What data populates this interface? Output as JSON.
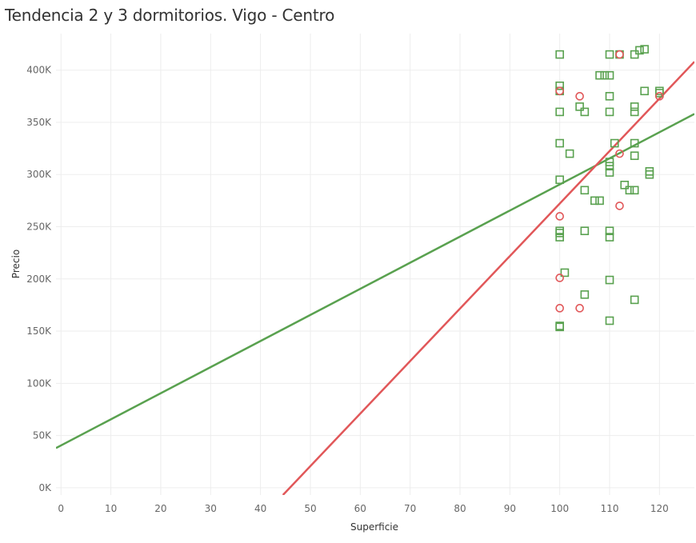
{
  "chart_data": {
    "type": "scatter",
    "title": "Tendencia 2 y 3 dormitorios. Vigo - Centro",
    "xlabel": "Superficie",
    "ylabel": "Precio",
    "xlim": [
      -1,
      127
    ],
    "ylim": [
      -7000,
      435000
    ],
    "x_ticks": [
      {
        "value": 0,
        "label": "0"
      },
      {
        "value": 10,
        "label": "10"
      },
      {
        "value": 20,
        "label": "20"
      },
      {
        "value": 30,
        "label": "30"
      },
      {
        "value": 40,
        "label": "40"
      },
      {
        "value": 50,
        "label": "50"
      },
      {
        "value": 60,
        "label": "60"
      },
      {
        "value": 70,
        "label": "70"
      },
      {
        "value": 80,
        "label": "80"
      },
      {
        "value": 90,
        "label": "90"
      },
      {
        "value": 100,
        "label": "100"
      },
      {
        "value": 110,
        "label": "110"
      },
      {
        "value": 120,
        "label": "120"
      }
    ],
    "y_ticks": [
      {
        "value": 0,
        "label": "0K"
      },
      {
        "value": 50000,
        "label": "50K"
      },
      {
        "value": 100000,
        "label": "100K"
      },
      {
        "value": 150000,
        "label": "150K"
      },
      {
        "value": 200000,
        "label": "200K"
      },
      {
        "value": 250000,
        "label": "250K"
      },
      {
        "value": 300000,
        "label": "300K"
      },
      {
        "value": 350000,
        "label": "350K"
      },
      {
        "value": 400000,
        "label": "400K"
      }
    ],
    "grid": true,
    "series": [
      {
        "marker": "square",
        "color": "#59a14f",
        "points": [
          [
            100,
            415000
          ],
          [
            100,
            385000
          ],
          [
            100,
            380000
          ],
          [
            100,
            360000
          ],
          [
            100,
            330000
          ],
          [
            100,
            295000
          ],
          [
            100,
            246000
          ],
          [
            100,
            244000
          ],
          [
            100,
            240000
          ],
          [
            100,
            155000
          ],
          [
            100,
            154000
          ],
          [
            101,
            206000
          ],
          [
            102,
            320000
          ],
          [
            104,
            365000
          ],
          [
            105,
            360000
          ],
          [
            105,
            285000
          ],
          [
            105,
            246000
          ],
          [
            105,
            185000
          ],
          [
            107,
            275000
          ],
          [
            108,
            275000
          ],
          [
            108,
            395000
          ],
          [
            109,
            395000
          ],
          [
            110,
            395000
          ],
          [
            110,
            415000
          ],
          [
            110,
            375000
          ],
          [
            110,
            360000
          ],
          [
            110,
            312000
          ],
          [
            110,
            308000
          ],
          [
            110,
            302000
          ],
          [
            110,
            246000
          ],
          [
            110,
            240000
          ],
          [
            110,
            199000
          ],
          [
            110,
            160000
          ],
          [
            111,
            330000
          ],
          [
            112,
            415000
          ],
          [
            113,
            290000
          ],
          [
            114,
            285000
          ],
          [
            115,
            285000
          ],
          [
            115,
            415000
          ],
          [
            115,
            365000
          ],
          [
            115,
            360000
          ],
          [
            115,
            330000
          ],
          [
            115,
            318000
          ],
          [
            115,
            180000
          ],
          [
            116,
            419000
          ],
          [
            117,
            420000
          ],
          [
            117,
            380000
          ],
          [
            118,
            303000
          ],
          [
            118,
            300000
          ],
          [
            120,
            380000
          ],
          [
            120,
            378000
          ]
        ],
        "trend": {
          "x": [
            -1,
            127
          ],
          "y": [
            38000,
            358000
          ]
        }
      },
      {
        "marker": "circle",
        "color": "#e15759",
        "points": [
          [
            100,
            380000
          ],
          [
            100,
            260000
          ],
          [
            100,
            201000
          ],
          [
            100,
            172000
          ],
          [
            104,
            375000
          ],
          [
            104,
            172000
          ],
          [
            112,
            415000
          ],
          [
            112,
            320000
          ],
          [
            112,
            270000
          ],
          [
            120,
            375000
          ]
        ],
        "trend": {
          "x": [
            44.5,
            127
          ],
          "y": [
            -7000,
            408000
          ]
        }
      }
    ]
  }
}
